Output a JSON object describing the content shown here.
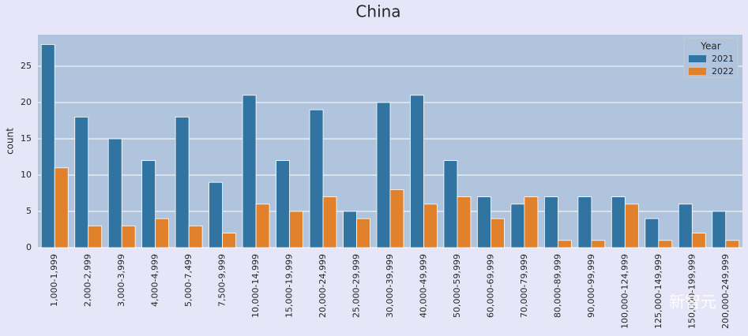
{
  "chart_data": {
    "type": "bar",
    "title": "China",
    "y_label": "count",
    "legend_title": "Year",
    "legend_position": "upper right",
    "grid": true,
    "categories": [
      "1,000-1,999",
      "2,000-2,999",
      "3,000-3,999",
      "4,000-4,999",
      "5,000-7,499",
      "7,500-9,999",
      "10,000-14,999",
      "15,000-19,999",
      "20,000-24,999",
      "25,000-29,999",
      "30,000-39,999",
      "40,000-49,999",
      "50,000-59,999",
      "60,000-69,999",
      "70,000-79,999",
      "80,000-89,999",
      "90,000-99,999",
      "100,000-124,999",
      "125,000-149,999",
      "150,000-199,999",
      "200,000-249,999"
    ],
    "series": [
      {
        "name": "2021",
        "color": "#3274a1",
        "values": [
          28,
          18,
          15,
          12,
          18,
          9,
          21,
          12,
          19,
          5,
          20,
          21,
          12,
          7,
          6,
          7,
          7,
          7,
          4,
          6,
          5
        ]
      },
      {
        "name": "2022",
        "color": "#e1812c",
        "values": [
          11,
          3,
          3,
          4,
          3,
          2,
          6,
          5,
          7,
          4,
          8,
          6,
          7,
          4,
          7,
          1,
          1,
          6,
          1,
          2,
          1
        ]
      }
    ],
    "ylim": [
      0,
      29.35
    ],
    "yticks": [
      0,
      5,
      10,
      15,
      20,
      25
    ],
    "watermark": "新智元"
  }
}
